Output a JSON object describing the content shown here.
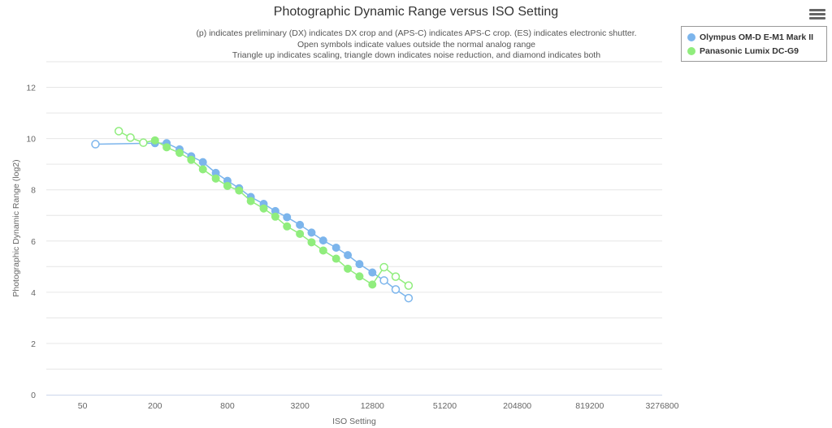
{
  "header": {
    "title": "Photographic Dynamic Range versus ISO Setting",
    "subtitle_lines": [
      "(p) indicates preliminary (DX) indicates DX crop and (APS-C) indicates APS-C crop. (ES) indicates electronic shutter.",
      "Open symbols indicate values outside the normal analog range",
      "Triangle up indicates scaling, triangle down indicates noise reduction, and diamond indicates both"
    ]
  },
  "menu": {
    "icon": "hamburger-menu-icon"
  },
  "legend": {
    "items": [
      {
        "label": "Olympus OM-D E-M1 Mark II",
        "color": "#7cb5ec"
      },
      {
        "label": "Panasonic Lumix DC-G9",
        "color": "#90ed7d"
      }
    ]
  },
  "chart_data": {
    "type": "line",
    "title": "Photographic Dynamic Range versus ISO Setting",
    "xlabel": "ISO Setting",
    "ylabel": "Photographic Dynamic Range (log2)",
    "x_scale": "log2",
    "xlim": [
      25,
      3276800
    ],
    "ylim": [
      0,
      13
    ],
    "x_ticks": [
      50,
      200,
      800,
      3200,
      12800,
      51200,
      204800,
      819200,
      3276800
    ],
    "y_ticks": [
      0,
      2,
      4,
      6,
      8,
      10,
      12
    ],
    "grid": true,
    "legend_position": "top-right",
    "series": [
      {
        "name": "Olympus OM-D E-M1 Mark II",
        "color": "#7cb5ec",
        "points": [
          {
            "x": 64,
            "y": 9.78,
            "open": true
          },
          {
            "x": 200,
            "y": 9.82,
            "open": false
          },
          {
            "x": 250,
            "y": 9.82,
            "open": false
          },
          {
            "x": 320,
            "y": 9.58,
            "open": false
          },
          {
            "x": 400,
            "y": 9.31,
            "open": false
          },
          {
            "x": 500,
            "y": 9.08,
            "open": false
          },
          {
            "x": 640,
            "y": 8.66,
            "open": false
          },
          {
            "x": 800,
            "y": 8.35,
            "open": false
          },
          {
            "x": 1000,
            "y": 8.06,
            "open": false
          },
          {
            "x": 1250,
            "y": 7.72,
            "open": false
          },
          {
            "x": 1600,
            "y": 7.45,
            "open": false
          },
          {
            "x": 2000,
            "y": 7.17,
            "open": false
          },
          {
            "x": 2500,
            "y": 6.93,
            "open": false
          },
          {
            "x": 3200,
            "y": 6.63,
            "open": false
          },
          {
            "x": 4000,
            "y": 6.33,
            "open": false
          },
          {
            "x": 5000,
            "y": 6.02,
            "open": false
          },
          {
            "x": 6400,
            "y": 5.74,
            "open": false
          },
          {
            "x": 8000,
            "y": 5.45,
            "open": false
          },
          {
            "x": 10000,
            "y": 5.1,
            "open": false
          },
          {
            "x": 12800,
            "y": 4.77,
            "open": false
          },
          {
            "x": 16000,
            "y": 4.46,
            "open": true
          },
          {
            "x": 20000,
            "y": 4.11,
            "open": true
          },
          {
            "x": 25600,
            "y": 3.77,
            "open": true
          }
        ]
      },
      {
        "name": "Panasonic Lumix DC-G9",
        "color": "#90ed7d",
        "points": [
          {
            "x": 100,
            "y": 10.29,
            "open": true
          },
          {
            "x": 125,
            "y": 10.04,
            "open": true
          },
          {
            "x": 160,
            "y": 9.84,
            "open": true
          },
          {
            "x": 200,
            "y": 9.93,
            "open": false
          },
          {
            "x": 250,
            "y": 9.66,
            "open": false
          },
          {
            "x": 320,
            "y": 9.44,
            "open": false
          },
          {
            "x": 400,
            "y": 9.17,
            "open": false
          },
          {
            "x": 500,
            "y": 8.8,
            "open": false
          },
          {
            "x": 640,
            "y": 8.44,
            "open": false
          },
          {
            "x": 800,
            "y": 8.15,
            "open": false
          },
          {
            "x": 1000,
            "y": 7.97,
            "open": false
          },
          {
            "x": 1250,
            "y": 7.56,
            "open": false
          },
          {
            "x": 1600,
            "y": 7.27,
            "open": false
          },
          {
            "x": 2000,
            "y": 6.95,
            "open": false
          },
          {
            "x": 2500,
            "y": 6.57,
            "open": false
          },
          {
            "x": 3200,
            "y": 6.28,
            "open": false
          },
          {
            "x": 4000,
            "y": 5.95,
            "open": false
          },
          {
            "x": 5000,
            "y": 5.63,
            "open": false
          },
          {
            "x": 6400,
            "y": 5.31,
            "open": false
          },
          {
            "x": 8000,
            "y": 4.92,
            "open": false
          },
          {
            "x": 10000,
            "y": 4.62,
            "open": false
          },
          {
            "x": 12800,
            "y": 4.3,
            "open": false
          },
          {
            "x": 16000,
            "y": 4.98,
            "open": true
          },
          {
            "x": 20000,
            "y": 4.61,
            "open": true
          },
          {
            "x": 25600,
            "y": 4.26,
            "open": true
          }
        ]
      }
    ]
  }
}
